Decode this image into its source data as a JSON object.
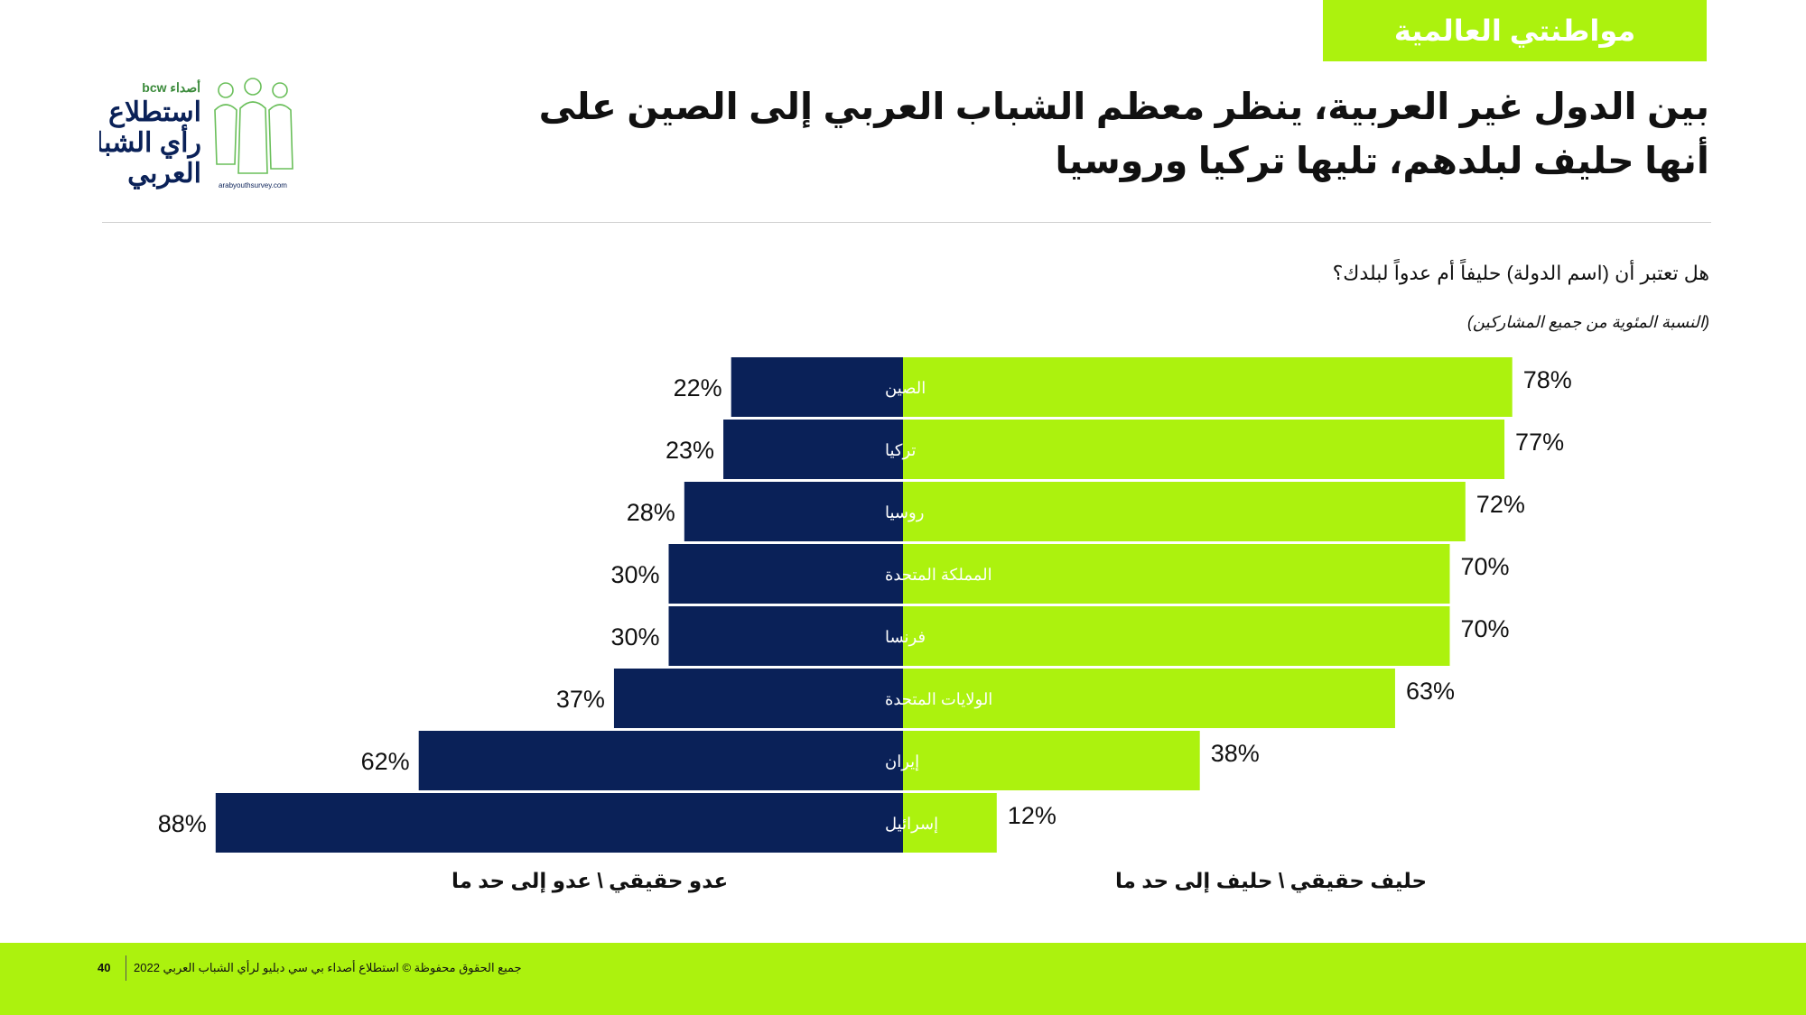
{
  "section_tag": "مواطنتي العالمية",
  "title": "بين الدول غير العربية، ينظر معظم الشباب العربي إلى الصين على أنها حليف لبلدهم، تليها تركيا وروسيا",
  "question": "هل تعتبر أن (اسم الدولة) حليفاً أم عدواً لبلدك؟",
  "note": "(النسبة المئوية من جميع المشاركين)",
  "logo": {
    "brand": "bcw أصداء",
    "line1": "استطلاع",
    "line2": "رأي الشباب",
    "line3": "العربي",
    "url": "arabyouthsurvey.com"
  },
  "colors": {
    "enemy": "#0a2158",
    "ally": "#acf20e",
    "accent": "#acf20e"
  },
  "chart_data": {
    "type": "bar",
    "orientation": "horizontal-diverging",
    "categories": [
      "الصين",
      "تركيا",
      "روسيا",
      "المملكة المتحدة",
      "فرنسا",
      "الولايات المتحدة",
      "إيران",
      "إسرائيل"
    ],
    "series": [
      {
        "name": "عدو حقيقي \\ عدو إلى حد ما",
        "values": [
          22,
          23,
          28,
          30,
          30,
          37,
          62,
          88
        ],
        "color": "#0a2158",
        "side": "left"
      },
      {
        "name": "حليف حقيقي \\ حليف إلى حد ما",
        "values": [
          78,
          77,
          72,
          70,
          70,
          63,
          38,
          12
        ],
        "color": "#acf20e",
        "side": "right"
      }
    ],
    "value_suffix": "%",
    "xlim": [
      0,
      100
    ],
    "grid": false
  },
  "legend": {
    "enemy": "عدو حقيقي \\ عدو إلى حد ما",
    "ally": "حليف حقيقي \\ حليف إلى حد ما"
  },
  "footer": {
    "page": "40",
    "copyright": "جميع الحقوق محفوظة © استطلاع أصداء بي سي دبليو لرأي الشباب العربي 2022"
  }
}
